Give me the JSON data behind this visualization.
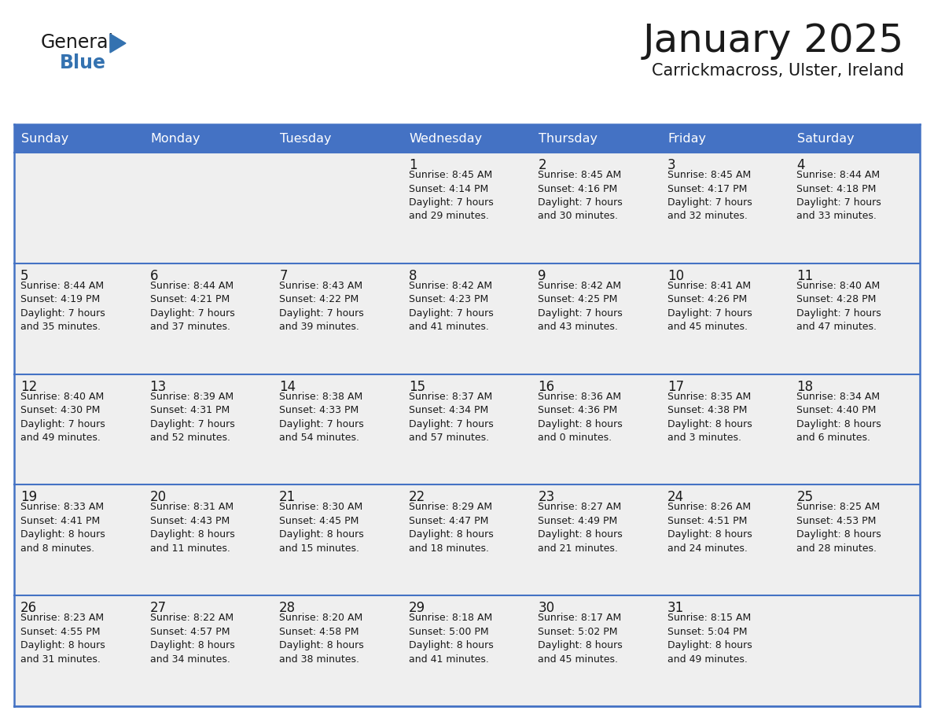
{
  "title": "January 2025",
  "subtitle": "Carrickmacross, Ulster, Ireland",
  "days_of_week": [
    "Sunday",
    "Monday",
    "Tuesday",
    "Wednesday",
    "Thursday",
    "Friday",
    "Saturday"
  ],
  "header_bg": "#4472C4",
  "header_text": "#FFFFFF",
  "cell_bg": "#EFEFEF",
  "cell_bg_white": "#FFFFFF",
  "border_color": "#4472C4",
  "text_color": "#1a1a1a",
  "title_color": "#1a1a1a",
  "weeks": [
    [
      {
        "day": "",
        "info": ""
      },
      {
        "day": "",
        "info": ""
      },
      {
        "day": "",
        "info": ""
      },
      {
        "day": "1",
        "info": "Sunrise: 8:45 AM\nSunset: 4:14 PM\nDaylight: 7 hours\nand 29 minutes."
      },
      {
        "day": "2",
        "info": "Sunrise: 8:45 AM\nSunset: 4:16 PM\nDaylight: 7 hours\nand 30 minutes."
      },
      {
        "day": "3",
        "info": "Sunrise: 8:45 AM\nSunset: 4:17 PM\nDaylight: 7 hours\nand 32 minutes."
      },
      {
        "day": "4",
        "info": "Sunrise: 8:44 AM\nSunset: 4:18 PM\nDaylight: 7 hours\nand 33 minutes."
      }
    ],
    [
      {
        "day": "5",
        "info": "Sunrise: 8:44 AM\nSunset: 4:19 PM\nDaylight: 7 hours\nand 35 minutes."
      },
      {
        "day": "6",
        "info": "Sunrise: 8:44 AM\nSunset: 4:21 PM\nDaylight: 7 hours\nand 37 minutes."
      },
      {
        "day": "7",
        "info": "Sunrise: 8:43 AM\nSunset: 4:22 PM\nDaylight: 7 hours\nand 39 minutes."
      },
      {
        "day": "8",
        "info": "Sunrise: 8:42 AM\nSunset: 4:23 PM\nDaylight: 7 hours\nand 41 minutes."
      },
      {
        "day": "9",
        "info": "Sunrise: 8:42 AM\nSunset: 4:25 PM\nDaylight: 7 hours\nand 43 minutes."
      },
      {
        "day": "10",
        "info": "Sunrise: 8:41 AM\nSunset: 4:26 PM\nDaylight: 7 hours\nand 45 minutes."
      },
      {
        "day": "11",
        "info": "Sunrise: 8:40 AM\nSunset: 4:28 PM\nDaylight: 7 hours\nand 47 minutes."
      }
    ],
    [
      {
        "day": "12",
        "info": "Sunrise: 8:40 AM\nSunset: 4:30 PM\nDaylight: 7 hours\nand 49 minutes."
      },
      {
        "day": "13",
        "info": "Sunrise: 8:39 AM\nSunset: 4:31 PM\nDaylight: 7 hours\nand 52 minutes."
      },
      {
        "day": "14",
        "info": "Sunrise: 8:38 AM\nSunset: 4:33 PM\nDaylight: 7 hours\nand 54 minutes."
      },
      {
        "day": "15",
        "info": "Sunrise: 8:37 AM\nSunset: 4:34 PM\nDaylight: 7 hours\nand 57 minutes."
      },
      {
        "day": "16",
        "info": "Sunrise: 8:36 AM\nSunset: 4:36 PM\nDaylight: 8 hours\nand 0 minutes."
      },
      {
        "day": "17",
        "info": "Sunrise: 8:35 AM\nSunset: 4:38 PM\nDaylight: 8 hours\nand 3 minutes."
      },
      {
        "day": "18",
        "info": "Sunrise: 8:34 AM\nSunset: 4:40 PM\nDaylight: 8 hours\nand 6 minutes."
      }
    ],
    [
      {
        "day": "19",
        "info": "Sunrise: 8:33 AM\nSunset: 4:41 PM\nDaylight: 8 hours\nand 8 minutes."
      },
      {
        "day": "20",
        "info": "Sunrise: 8:31 AM\nSunset: 4:43 PM\nDaylight: 8 hours\nand 11 minutes."
      },
      {
        "day": "21",
        "info": "Sunrise: 8:30 AM\nSunset: 4:45 PM\nDaylight: 8 hours\nand 15 minutes."
      },
      {
        "day": "22",
        "info": "Sunrise: 8:29 AM\nSunset: 4:47 PM\nDaylight: 8 hours\nand 18 minutes."
      },
      {
        "day": "23",
        "info": "Sunrise: 8:27 AM\nSunset: 4:49 PM\nDaylight: 8 hours\nand 21 minutes."
      },
      {
        "day": "24",
        "info": "Sunrise: 8:26 AM\nSunset: 4:51 PM\nDaylight: 8 hours\nand 24 minutes."
      },
      {
        "day": "25",
        "info": "Sunrise: 8:25 AM\nSunset: 4:53 PM\nDaylight: 8 hours\nand 28 minutes."
      }
    ],
    [
      {
        "day": "26",
        "info": "Sunrise: 8:23 AM\nSunset: 4:55 PM\nDaylight: 8 hours\nand 31 minutes."
      },
      {
        "day": "27",
        "info": "Sunrise: 8:22 AM\nSunset: 4:57 PM\nDaylight: 8 hours\nand 34 minutes."
      },
      {
        "day": "28",
        "info": "Sunrise: 8:20 AM\nSunset: 4:58 PM\nDaylight: 8 hours\nand 38 minutes."
      },
      {
        "day": "29",
        "info": "Sunrise: 8:18 AM\nSunset: 5:00 PM\nDaylight: 8 hours\nand 41 minutes."
      },
      {
        "day": "30",
        "info": "Sunrise: 8:17 AM\nSunset: 5:02 PM\nDaylight: 8 hours\nand 45 minutes."
      },
      {
        "day": "31",
        "info": "Sunrise: 8:15 AM\nSunset: 5:04 PM\nDaylight: 8 hours\nand 49 minutes."
      },
      {
        "day": "",
        "info": ""
      }
    ]
  ]
}
